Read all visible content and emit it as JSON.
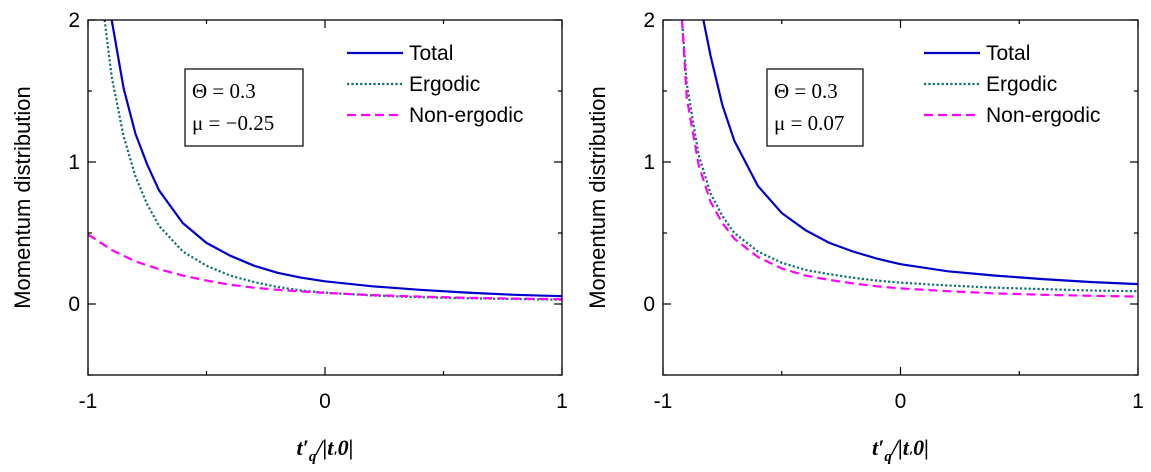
{
  "chart_data": [
    {
      "type": "line",
      "xlabel": "t′q/|t′0|",
      "ylabel": "Momentum distribution",
      "xlim": [
        -1,
        1
      ],
      "ylim": [
        -0.5,
        2
      ],
      "xticks": [
        "-1",
        "0",
        "1"
      ],
      "yticks": [
        "0",
        "1",
        "2"
      ],
      "grid": false,
      "legend_position": "top-right",
      "annotation": [
        "Θ = 0.3",
        "μ = −0.25"
      ],
      "series": [
        {
          "name": "Total",
          "color": "#0000cc",
          "dash": "solid",
          "x": [
            -0.9,
            -0.85,
            -0.8,
            -0.75,
            -0.7,
            -0.6,
            -0.5,
            -0.4,
            -0.3,
            -0.2,
            -0.1,
            0.0,
            0.2,
            0.4,
            0.6,
            0.8,
            1.0
          ],
          "y": [
            2.0,
            1.52,
            1.2,
            0.98,
            0.8,
            0.57,
            0.43,
            0.34,
            0.27,
            0.22,
            0.185,
            0.16,
            0.125,
            0.1,
            0.08,
            0.065,
            0.055
          ]
        },
        {
          "name": "Ergodic",
          "color": "#0e7070",
          "dash": "dotted",
          "x": [
            -0.93,
            -0.9,
            -0.85,
            -0.8,
            -0.75,
            -0.7,
            -0.6,
            -0.5,
            -0.4,
            -0.3,
            -0.2,
            -0.1,
            0.0,
            0.2,
            0.4,
            0.6,
            0.8,
            1.0
          ],
          "y": [
            2.0,
            1.6,
            1.18,
            0.9,
            0.7,
            0.55,
            0.37,
            0.27,
            0.2,
            0.155,
            0.12,
            0.095,
            0.08,
            0.06,
            0.048,
            0.04,
            0.035,
            0.03
          ]
        },
        {
          "name": "Non-ergodic",
          "color": "#ff00ff",
          "dash": "dashed",
          "x": [
            -1.0,
            -0.9,
            -0.8,
            -0.7,
            -0.6,
            -0.5,
            -0.4,
            -0.3,
            -0.2,
            -0.1,
            0.0,
            0.2,
            0.4,
            0.6,
            0.8,
            1.0
          ],
          "y": [
            0.49,
            0.38,
            0.3,
            0.245,
            0.2,
            0.165,
            0.135,
            0.115,
            0.1,
            0.088,
            0.078,
            0.063,
            0.052,
            0.044,
            0.038,
            0.034
          ]
        }
      ]
    },
    {
      "type": "line",
      "xlabel": "t′q/|t′0|",
      "ylabel": "Momentum distribution",
      "xlim": [
        -1,
        1
      ],
      "ylim": [
        -0.5,
        2
      ],
      "xticks": [
        "-1",
        "0",
        "1"
      ],
      "yticks": [
        "0",
        "1",
        "2"
      ],
      "grid": false,
      "legend_position": "top-right",
      "annotation": [
        "Θ = 0.3",
        "μ = 0.07"
      ],
      "series": [
        {
          "name": "Total",
          "color": "#0000cc",
          "dash": "solid",
          "x": [
            -0.83,
            -0.8,
            -0.75,
            -0.7,
            -0.6,
            -0.5,
            -0.4,
            -0.3,
            -0.2,
            -0.1,
            0.0,
            0.2,
            0.4,
            0.6,
            0.8,
            1.0
          ],
          "y": [
            2.0,
            1.75,
            1.4,
            1.15,
            0.83,
            0.64,
            0.52,
            0.43,
            0.37,
            0.32,
            0.28,
            0.23,
            0.2,
            0.175,
            0.155,
            0.14
          ]
        },
        {
          "name": "Ergodic",
          "color": "#0e7070",
          "dash": "dotted",
          "x": [
            -0.92,
            -0.9,
            -0.85,
            -0.8,
            -0.75,
            -0.7,
            -0.6,
            -0.5,
            -0.4,
            -0.3,
            -0.2,
            -0.1,
            0.0,
            0.2,
            0.4,
            0.6,
            0.8,
            1.0
          ],
          "y": [
            2.0,
            1.55,
            1.05,
            0.78,
            0.62,
            0.5,
            0.37,
            0.29,
            0.24,
            0.21,
            0.185,
            0.165,
            0.15,
            0.13,
            0.115,
            0.105,
            0.095,
            0.09
          ]
        },
        {
          "name": "Non-ergodic",
          "color": "#ff00ff",
          "dash": "dashed",
          "x": [
            -0.92,
            -0.9,
            -0.85,
            -0.8,
            -0.75,
            -0.7,
            -0.6,
            -0.5,
            -0.4,
            -0.3,
            -0.2,
            -0.1,
            0.0,
            0.2,
            0.4,
            0.6,
            0.8,
            1.0
          ],
          "y": [
            2.0,
            1.45,
            0.98,
            0.72,
            0.57,
            0.46,
            0.33,
            0.25,
            0.2,
            0.17,
            0.145,
            0.125,
            0.11,
            0.09,
            0.075,
            0.065,
            0.058,
            0.052
          ]
        }
      ]
    }
  ]
}
